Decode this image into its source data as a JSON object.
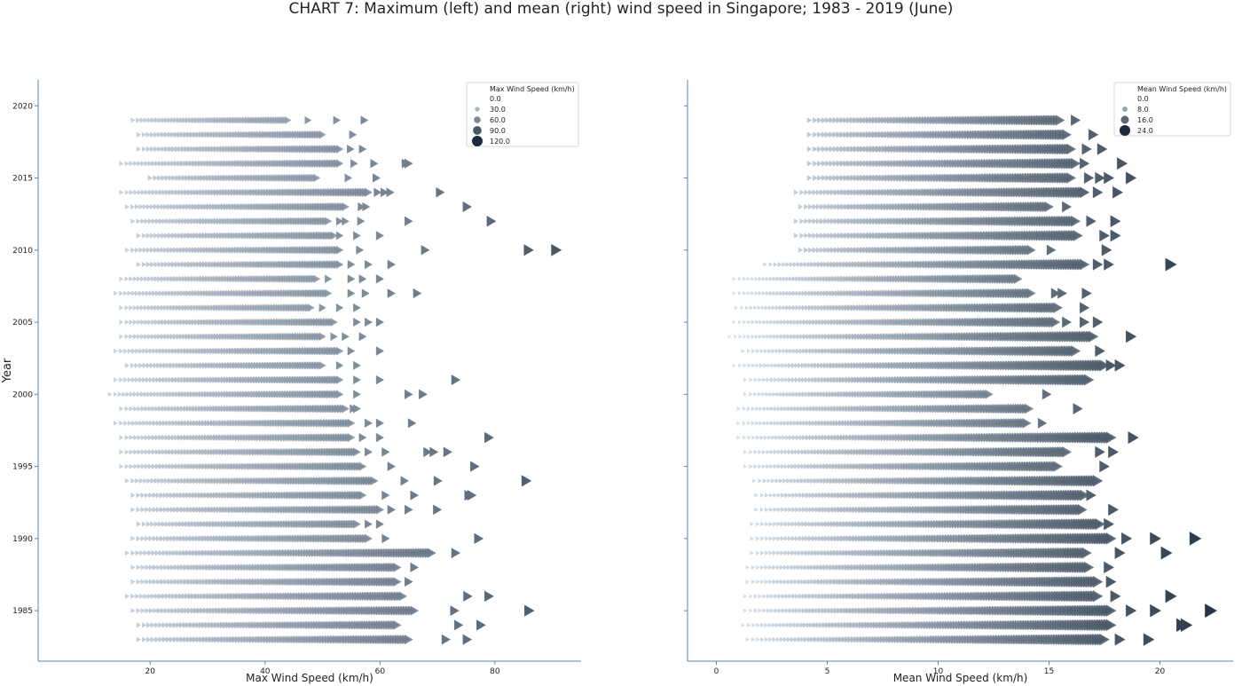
{
  "figure": {
    "title": "CHART 7: Maximum (left) and mean (right) wind speed in Singapore; 1983 - 2019 (June)",
    "ylabel": "Year",
    "y_ticks": [
      1985,
      1990,
      1995,
      2000,
      2005,
      2010,
      2015,
      2020
    ],
    "y_range": [
      1981.5,
      2021.8
    ]
  },
  "chart_data": [
    {
      "type": "scatter",
      "marker": "right-triangle",
      "title": "",
      "xlabel": "Max Wind Speed (km/h)",
      "ylabel": "Year",
      "xlim": [
        0.5,
        95
      ],
      "x_ticks": [
        20,
        40,
        60,
        80
      ],
      "x_tick_labels": [
        "20",
        "40",
        "60",
        "80"
      ],
      "legend": {
        "title": "Max Wind Speed (km/h)",
        "placement": "top-right",
        "entries": [
          "0.0",
          "30.0",
          "60.0",
          "90.0",
          "120.0"
        ],
        "entry_values": [
          0,
          30,
          60,
          90,
          120
        ]
      },
      "color_scale": {
        "domain": [
          0,
          120
        ],
        "range": [
          "#d6e2ef",
          "#1b2a3a"
        ]
      },
      "size_scale": {
        "max_value": 120
      },
      "series": [
        {
          "year": 2019,
          "min": 17,
          "max": 44,
          "outliers": [
            47.5,
            52.5,
            57.3
          ]
        },
        {
          "year": 2018,
          "min": 18,
          "max": 50,
          "outliers": [
            55.3
          ]
        },
        {
          "year": 2017,
          "min": 18,
          "max": 53,
          "outliers": [
            54.9,
            57
          ]
        },
        {
          "year": 2016,
          "min": 15,
          "max": 53,
          "outliers": [
            55.5,
            59,
            64.5,
            65
          ]
        },
        {
          "year": 2015,
          "min": 20,
          "max": 49,
          "outliers": [
            54.5,
            59.4
          ]
        },
        {
          "year": 2014,
          "min": 15,
          "max": 58,
          "outliers": [
            59.6,
            60.8,
            61.8,
            70.5
          ]
        },
        {
          "year": 2013,
          "min": 16,
          "max": 54,
          "outliers": [
            56.8,
            57.6,
            75.2
          ]
        },
        {
          "year": 2012,
          "min": 17,
          "max": 51,
          "outliers": [
            53,
            54,
            56.7,
            65,
            79.4
          ]
        },
        {
          "year": 2011,
          "min": 18,
          "max": 52,
          "outliers": [
            53,
            56,
            60
          ]
        },
        {
          "year": 2010,
          "min": 16,
          "max": 53,
          "outliers": [
            56.5,
            67.9,
            85.9,
            90.7
          ]
        },
        {
          "year": 2009,
          "min": 18,
          "max": 53,
          "outliers": [
            55,
            58,
            62
          ]
        },
        {
          "year": 2008,
          "min": 15,
          "max": 49,
          "outliers": [
            51,
            55,
            57,
            60
          ]
        },
        {
          "year": 2007,
          "min": 14,
          "max": 51,
          "outliers": [
            55,
            57.5,
            62,
            66.5
          ]
        },
        {
          "year": 2006,
          "min": 15,
          "max": 48,
          "outliers": [
            50,
            53,
            56
          ]
        },
        {
          "year": 2005,
          "min": 15,
          "max": 52,
          "outliers": [
            56,
            58,
            60
          ]
        },
        {
          "year": 2004,
          "min": 15,
          "max": 50,
          "outliers": [
            52,
            54,
            57
          ]
        },
        {
          "year": 2003,
          "min": 14,
          "max": 53,
          "outliers": [
            55,
            60
          ]
        },
        {
          "year": 2002,
          "min": 16,
          "max": 50,
          "outliers": [
            53,
            56
          ]
        },
        {
          "year": 2001,
          "min": 14,
          "max": 53,
          "outliers": [
            56,
            60,
            73.2
          ]
        },
        {
          "year": 2000,
          "min": 13,
          "max": 53,
          "outliers": [
            56,
            65,
            67.5
          ]
        },
        {
          "year": 1999,
          "min": 15,
          "max": 54,
          "outliers": [
            55.4,
            56
          ]
        },
        {
          "year": 1998,
          "min": 14,
          "max": 55,
          "outliers": [
            58,
            60,
            65.6
          ]
        },
        {
          "year": 1997,
          "min": 15,
          "max": 55,
          "outliers": [
            57,
            60,
            79
          ]
        },
        {
          "year": 1996,
          "min": 15,
          "max": 56,
          "outliers": [
            58,
            61,
            68.3,
            69.4,
            71.8
          ]
        },
        {
          "year": 1995,
          "min": 15,
          "max": 57,
          "outliers": [
            62,
            76.5
          ]
        },
        {
          "year": 1994,
          "min": 16,
          "max": 59,
          "outliers": [
            64.3,
            70.1,
            85.5
          ]
        },
        {
          "year": 1993,
          "min": 17,
          "max": 57,
          "outliers": [
            61,
            66,
            75.5,
            76
          ]
        },
        {
          "year": 1992,
          "min": 17,
          "max": 60,
          "outliers": [
            62,
            65,
            70
          ]
        },
        {
          "year": 1991,
          "min": 18,
          "max": 56,
          "outliers": [
            58,
            60
          ]
        },
        {
          "year": 1990,
          "min": 17,
          "max": 58,
          "outliers": [
            61,
            77.2
          ]
        },
        {
          "year": 1989,
          "min": 16,
          "max": 69,
          "outliers": [
            73.2
          ]
        },
        {
          "year": 1988,
          "min": 17,
          "max": 63,
          "outliers": [
            66
          ]
        },
        {
          "year": 1987,
          "min": 17,
          "max": 63,
          "outliers": [
            65
          ]
        },
        {
          "year": 1986,
          "min": 16,
          "max": 64,
          "outliers": [
            75.3,
            79
          ]
        },
        {
          "year": 1985,
          "min": 17,
          "max": 66,
          "outliers": [
            73,
            86
          ]
        },
        {
          "year": 1984,
          "min": 18,
          "max": 63,
          "outliers": [
            73.7,
            77.6
          ]
        },
        {
          "year": 1983,
          "min": 18,
          "max": 65,
          "outliers": [
            71.5,
            75.2
          ]
        }
      ]
    },
    {
      "type": "scatter",
      "marker": "right-triangle",
      "title": "",
      "xlabel": "Mean Wind Speed (km/h)",
      "ylabel": "",
      "xlim": [
        -1.3,
        23.3
      ],
      "x_ticks": [
        0,
        5,
        10,
        15,
        20
      ],
      "x_tick_labels": [
        "0",
        "5",
        "10",
        "15",
        "20"
      ],
      "legend": {
        "title": "Mean Wind Speed (km/h)",
        "placement": "top-right",
        "entries": [
          "0.0",
          "8.0",
          "16.0",
          "24.0"
        ],
        "entry_values": [
          0,
          8,
          16,
          24
        ]
      },
      "color_scale": {
        "domain": [
          0,
          24
        ],
        "range": [
          "#d6e2ef",
          "#1b2a3a"
        ]
      },
      "size_scale": {
        "max_value": 24
      },
      "series": [
        {
          "year": 2019,
          "min": 4.2,
          "max": 15.5,
          "outliers": [
            16.2
          ]
        },
        {
          "year": 2018,
          "min": 4.2,
          "max": 15.8,
          "outliers": [
            17
          ]
        },
        {
          "year": 2017,
          "min": 4.2,
          "max": 16,
          "outliers": [
            16.7,
            17.4
          ]
        },
        {
          "year": 2016,
          "min": 4.2,
          "max": 16.2,
          "outliers": [
            16.6,
            18.3
          ]
        },
        {
          "year": 2015,
          "min": 4.2,
          "max": 16,
          "outliers": [
            16.8,
            17.3,
            17.7,
            18.7
          ]
        },
        {
          "year": 2014,
          "min": 3.6,
          "max": 16.5,
          "outliers": [
            16.6,
            17.2,
            18.1
          ]
        },
        {
          "year": 2013,
          "min": 3.8,
          "max": 15,
          "outliers": [
            15.8
          ]
        },
        {
          "year": 2012,
          "min": 3.6,
          "max": 16.2,
          "outliers": [
            16.9,
            18
          ]
        },
        {
          "year": 2011,
          "min": 3.6,
          "max": 16.3,
          "outliers": [
            17.5,
            18
          ]
        },
        {
          "year": 2010,
          "min": 3.8,
          "max": 14.2,
          "outliers": [
            15.1,
            17.6
          ]
        },
        {
          "year": 2009,
          "min": 2.2,
          "max": 16.6,
          "outliers": [
            17.2,
            17.7,
            20.5
          ]
        },
        {
          "year": 2008,
          "min": 0.8,
          "max": 13.6,
          "outliers": []
        },
        {
          "year": 2007,
          "min": 0.8,
          "max": 14.2,
          "outliers": [
            15.3,
            15.6,
            16.7
          ]
        },
        {
          "year": 2006,
          "min": 0.9,
          "max": 15.4,
          "outliers": [
            16.6
          ]
        },
        {
          "year": 2005,
          "min": 0.8,
          "max": 15.3,
          "outliers": [
            15.8,
            16.6,
            17.2
          ]
        },
        {
          "year": 2004,
          "min": 0.6,
          "max": 17,
          "outliers": [
            18.7
          ]
        },
        {
          "year": 2003,
          "min": 1.2,
          "max": 16.2,
          "outliers": [
            17.3
          ]
        },
        {
          "year": 2002,
          "min": 0.8,
          "max": 17.5,
          "outliers": [
            17.8,
            18.2
          ]
        },
        {
          "year": 2001,
          "min": 1.3,
          "max": 16.8,
          "outliers": []
        },
        {
          "year": 2000,
          "min": 1.3,
          "max": 12.3,
          "outliers": [
            14.9
          ]
        },
        {
          "year": 1999,
          "min": 1.0,
          "max": 14.1,
          "outliers": [
            16.3
          ]
        },
        {
          "year": 1998,
          "min": 1.0,
          "max": 14,
          "outliers": [
            14.7
          ]
        },
        {
          "year": 1997,
          "min": 1.0,
          "max": 17.8,
          "outliers": [
            18.8
          ]
        },
        {
          "year": 1996,
          "min": 1.3,
          "max": 15.8,
          "outliers": [
            17.3,
            17.9
          ]
        },
        {
          "year": 1995,
          "min": 1.3,
          "max": 15.4,
          "outliers": [
            17.5
          ]
        },
        {
          "year": 1994,
          "min": 1.7,
          "max": 17.2,
          "outliers": []
        },
        {
          "year": 1993,
          "min": 1.8,
          "max": 16.6,
          "outliers": [
            16.9
          ]
        },
        {
          "year": 1992,
          "min": 1.8,
          "max": 16.5,
          "outliers": [
            17.9
          ]
        },
        {
          "year": 1991,
          "min": 1.6,
          "max": 17.3,
          "outliers": [
            17.7
          ]
        },
        {
          "year": 1990,
          "min": 1.6,
          "max": 17.8,
          "outliers": [
            18.5,
            19.8,
            21.6
          ]
        },
        {
          "year": 1989,
          "min": 1.6,
          "max": 16.7,
          "outliers": [
            18.2,
            20.3
          ]
        },
        {
          "year": 1988,
          "min": 1.4,
          "max": 16.8,
          "outliers": [
            17.7
          ]
        },
        {
          "year": 1987,
          "min": 1.4,
          "max": 17.2,
          "outliers": [
            17.8
          ]
        },
        {
          "year": 1986,
          "min": 1.3,
          "max": 17.2,
          "outliers": [
            18,
            20.5
          ]
        },
        {
          "year": 1985,
          "min": 1.3,
          "max": 17.8,
          "outliers": [
            18.7,
            19.8,
            22.3
          ]
        },
        {
          "year": 1984,
          "min": 1.2,
          "max": 17.8,
          "outliers": [
            21,
            21.2
          ]
        },
        {
          "year": 1983,
          "min": 1.4,
          "max": 17.5,
          "outliers": [
            18.2,
            19.5
          ]
        }
      ]
    }
  ]
}
